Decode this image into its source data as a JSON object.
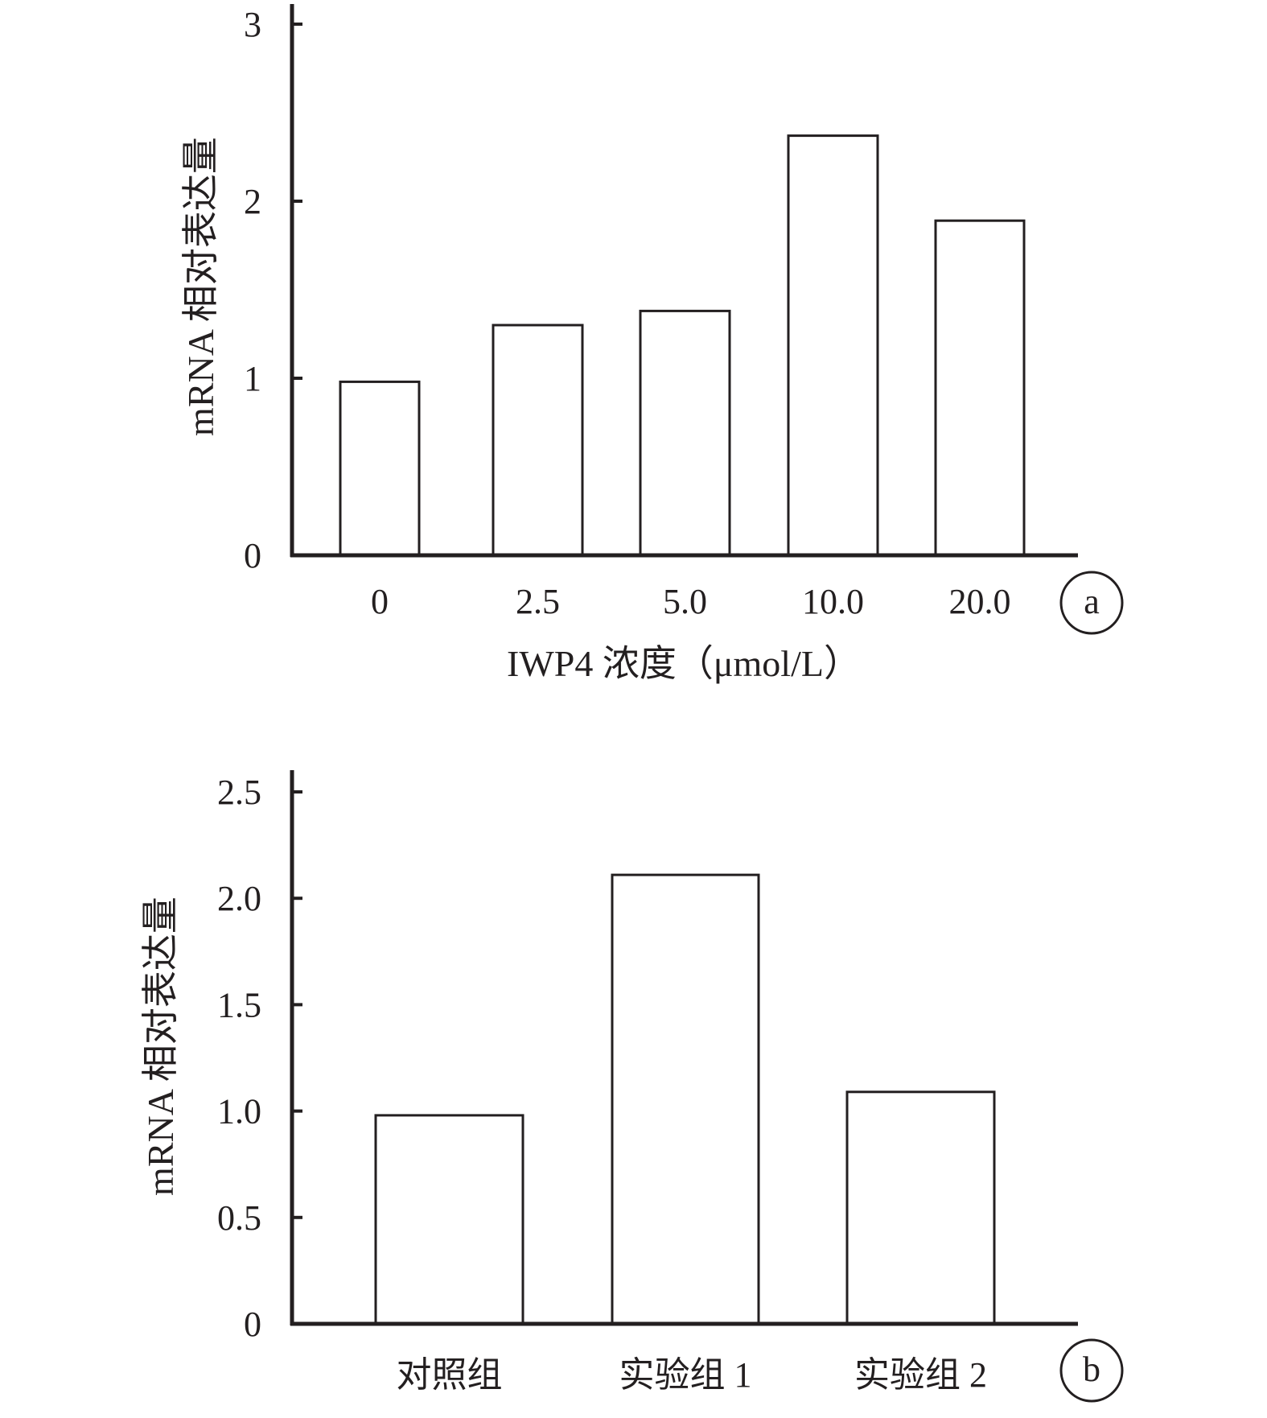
{
  "chart_data": [
    {
      "type": "bar",
      "panel_label": "a",
      "categories": [
        "0",
        "2.5",
        "5.0",
        "10.0",
        "20.0"
      ],
      "values": [
        0.98,
        1.3,
        1.38,
        2.37,
        1.89
      ],
      "xlabel": "IWP4 浓度（μmol/L）",
      "ylabel": "mRNA 相对表达量",
      "ylim": [
        0,
        3
      ],
      "yticks": [
        "0",
        "1",
        "2",
        "3"
      ],
      "grid": false,
      "colors": {
        "bar_fill": "#ffffff",
        "bar_stroke": "#231f20",
        "axis": "#231f20"
      }
    },
    {
      "type": "bar",
      "panel_label": "b",
      "categories": [
        "对照组",
        "实验组 1",
        "实验组 2"
      ],
      "values": [
        0.98,
        2.11,
        1.09
      ],
      "xlabel": "",
      "ylabel": "mRNA 相对表达量",
      "ylim": [
        0,
        2.5
      ],
      "yticks": [
        "0",
        "0.5",
        "1.0",
        "1.5",
        "2.0",
        "2.5"
      ],
      "grid": false,
      "colors": {
        "bar_fill": "#ffffff",
        "bar_stroke": "#231f20",
        "axis": "#231f20"
      }
    }
  ]
}
